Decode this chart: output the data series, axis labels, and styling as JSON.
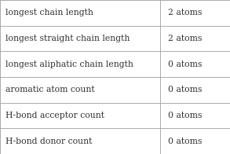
{
  "rows": [
    [
      "longest chain length",
      "2 atoms"
    ],
    [
      "longest straight chain length",
      "2 atoms"
    ],
    [
      "longest aliphatic chain length",
      "0 atoms"
    ],
    [
      "aromatic atom count",
      "0 atoms"
    ],
    [
      "H-bond acceptor count",
      "0 atoms"
    ],
    [
      "H-bond donor count",
      "0 atoms"
    ]
  ],
  "col_split": 0.695,
  "background_color": "#ffffff",
  "border_color": "#aaaaaa",
  "text_color": "#333333",
  "font_size": 7.8,
  "figsize": [
    2.93,
    1.96
  ],
  "dpi": 100
}
